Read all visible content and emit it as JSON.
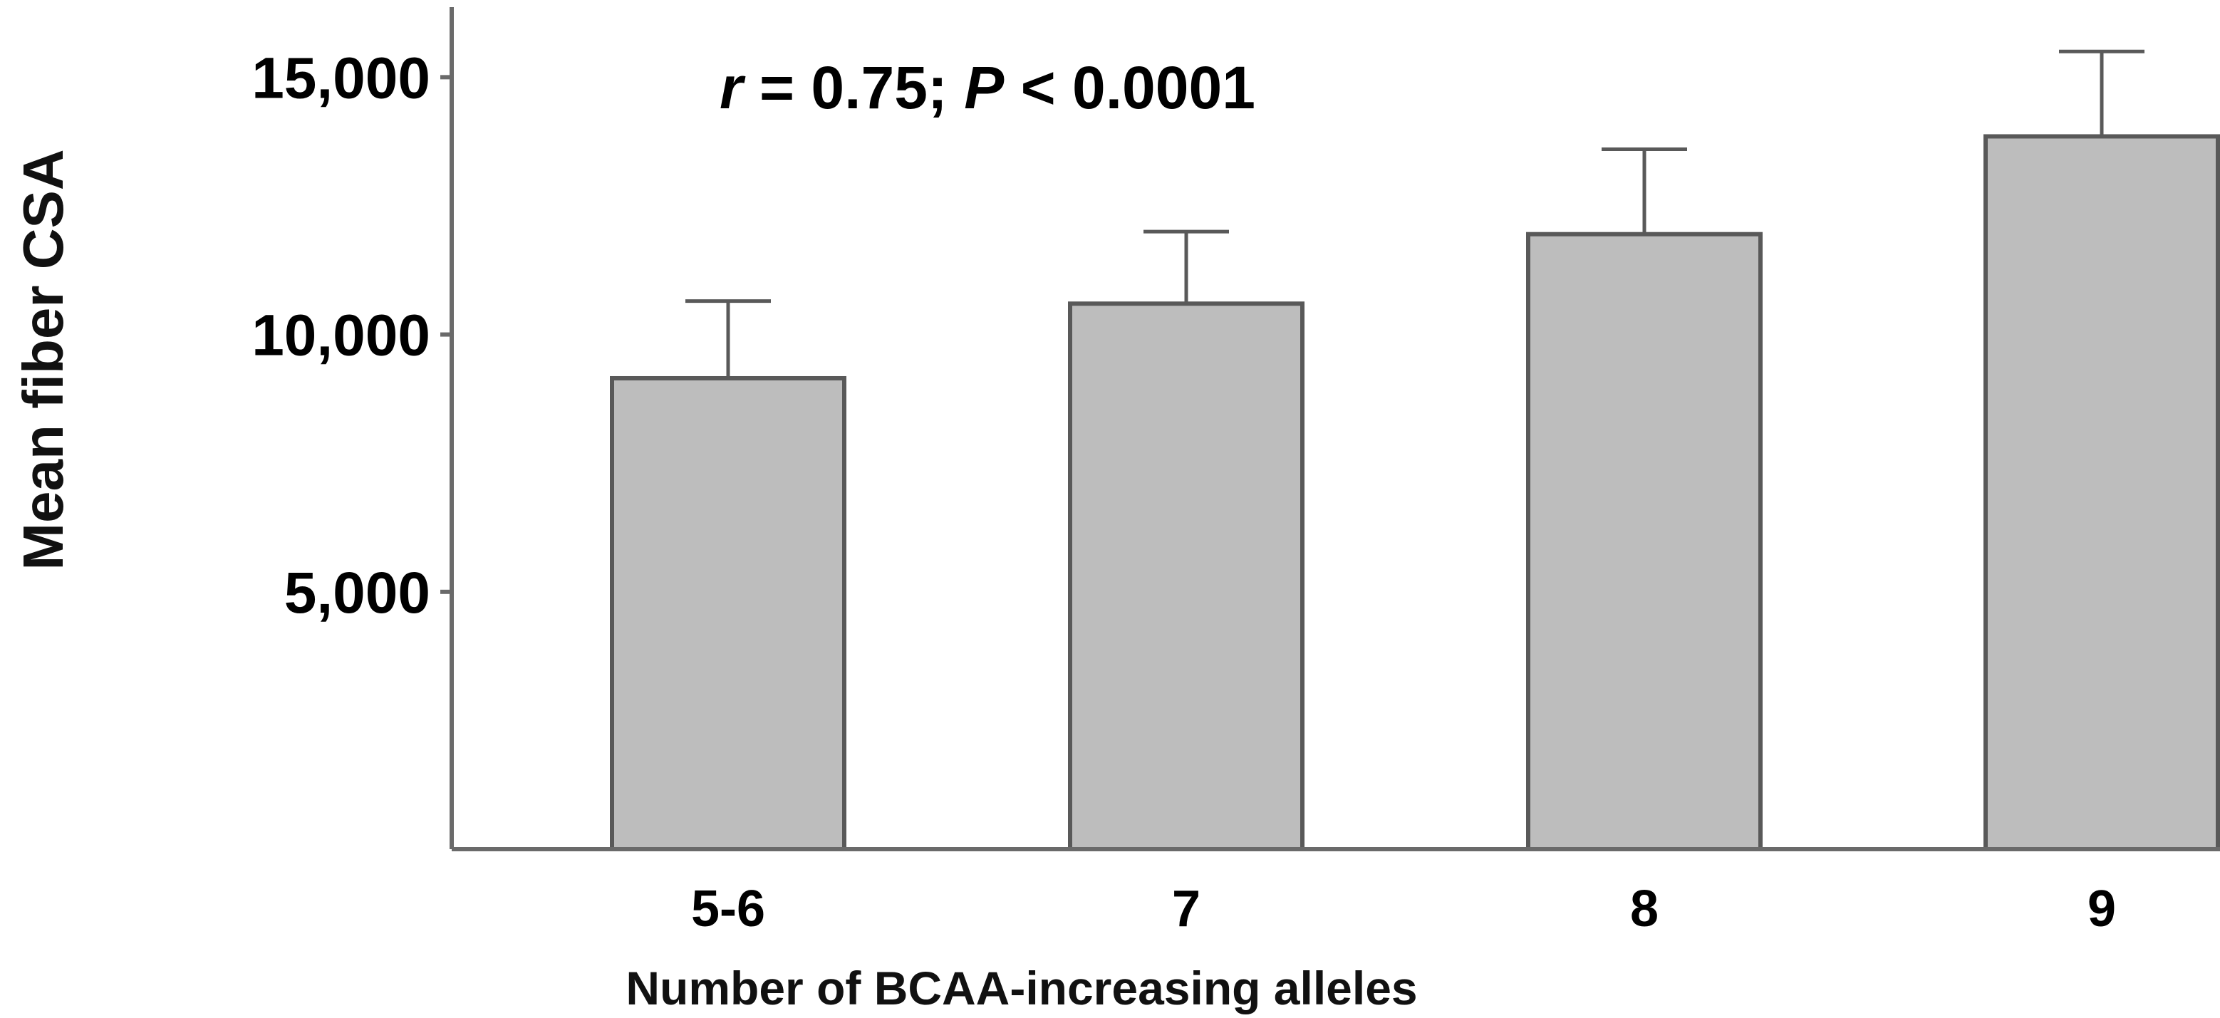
{
  "chart_data": {
    "type": "bar",
    "title": "",
    "xlabel": "Number of BCAA-increasing alleles",
    "ylabel": "Mean fiber CSA",
    "categories": [
      "5-6",
      "7",
      "8",
      "9"
    ],
    "series": [
      {
        "values": [
          9150,
          10600,
          11950,
          13850
        ],
        "error_upper": [
          1500,
          1400,
          1650,
          1650
        ]
      }
    ],
    "ylim": [
      0,
      16500
    ],
    "yticks": [
      5000,
      10000,
      15000
    ],
    "ytick_labels": [
      "5,000",
      "10,000",
      "15,000"
    ],
    "grid": false,
    "legend": "none",
    "annotation": {
      "r_symbol": "r",
      "r_text": " = 0.75; ",
      "p_symbol": "P",
      "p_text": " < 0.0001"
    },
    "colors": {
      "bar_fill": "#bdbdbd",
      "bar_stroke": "#595959",
      "axis": "#6a6a6a"
    }
  }
}
